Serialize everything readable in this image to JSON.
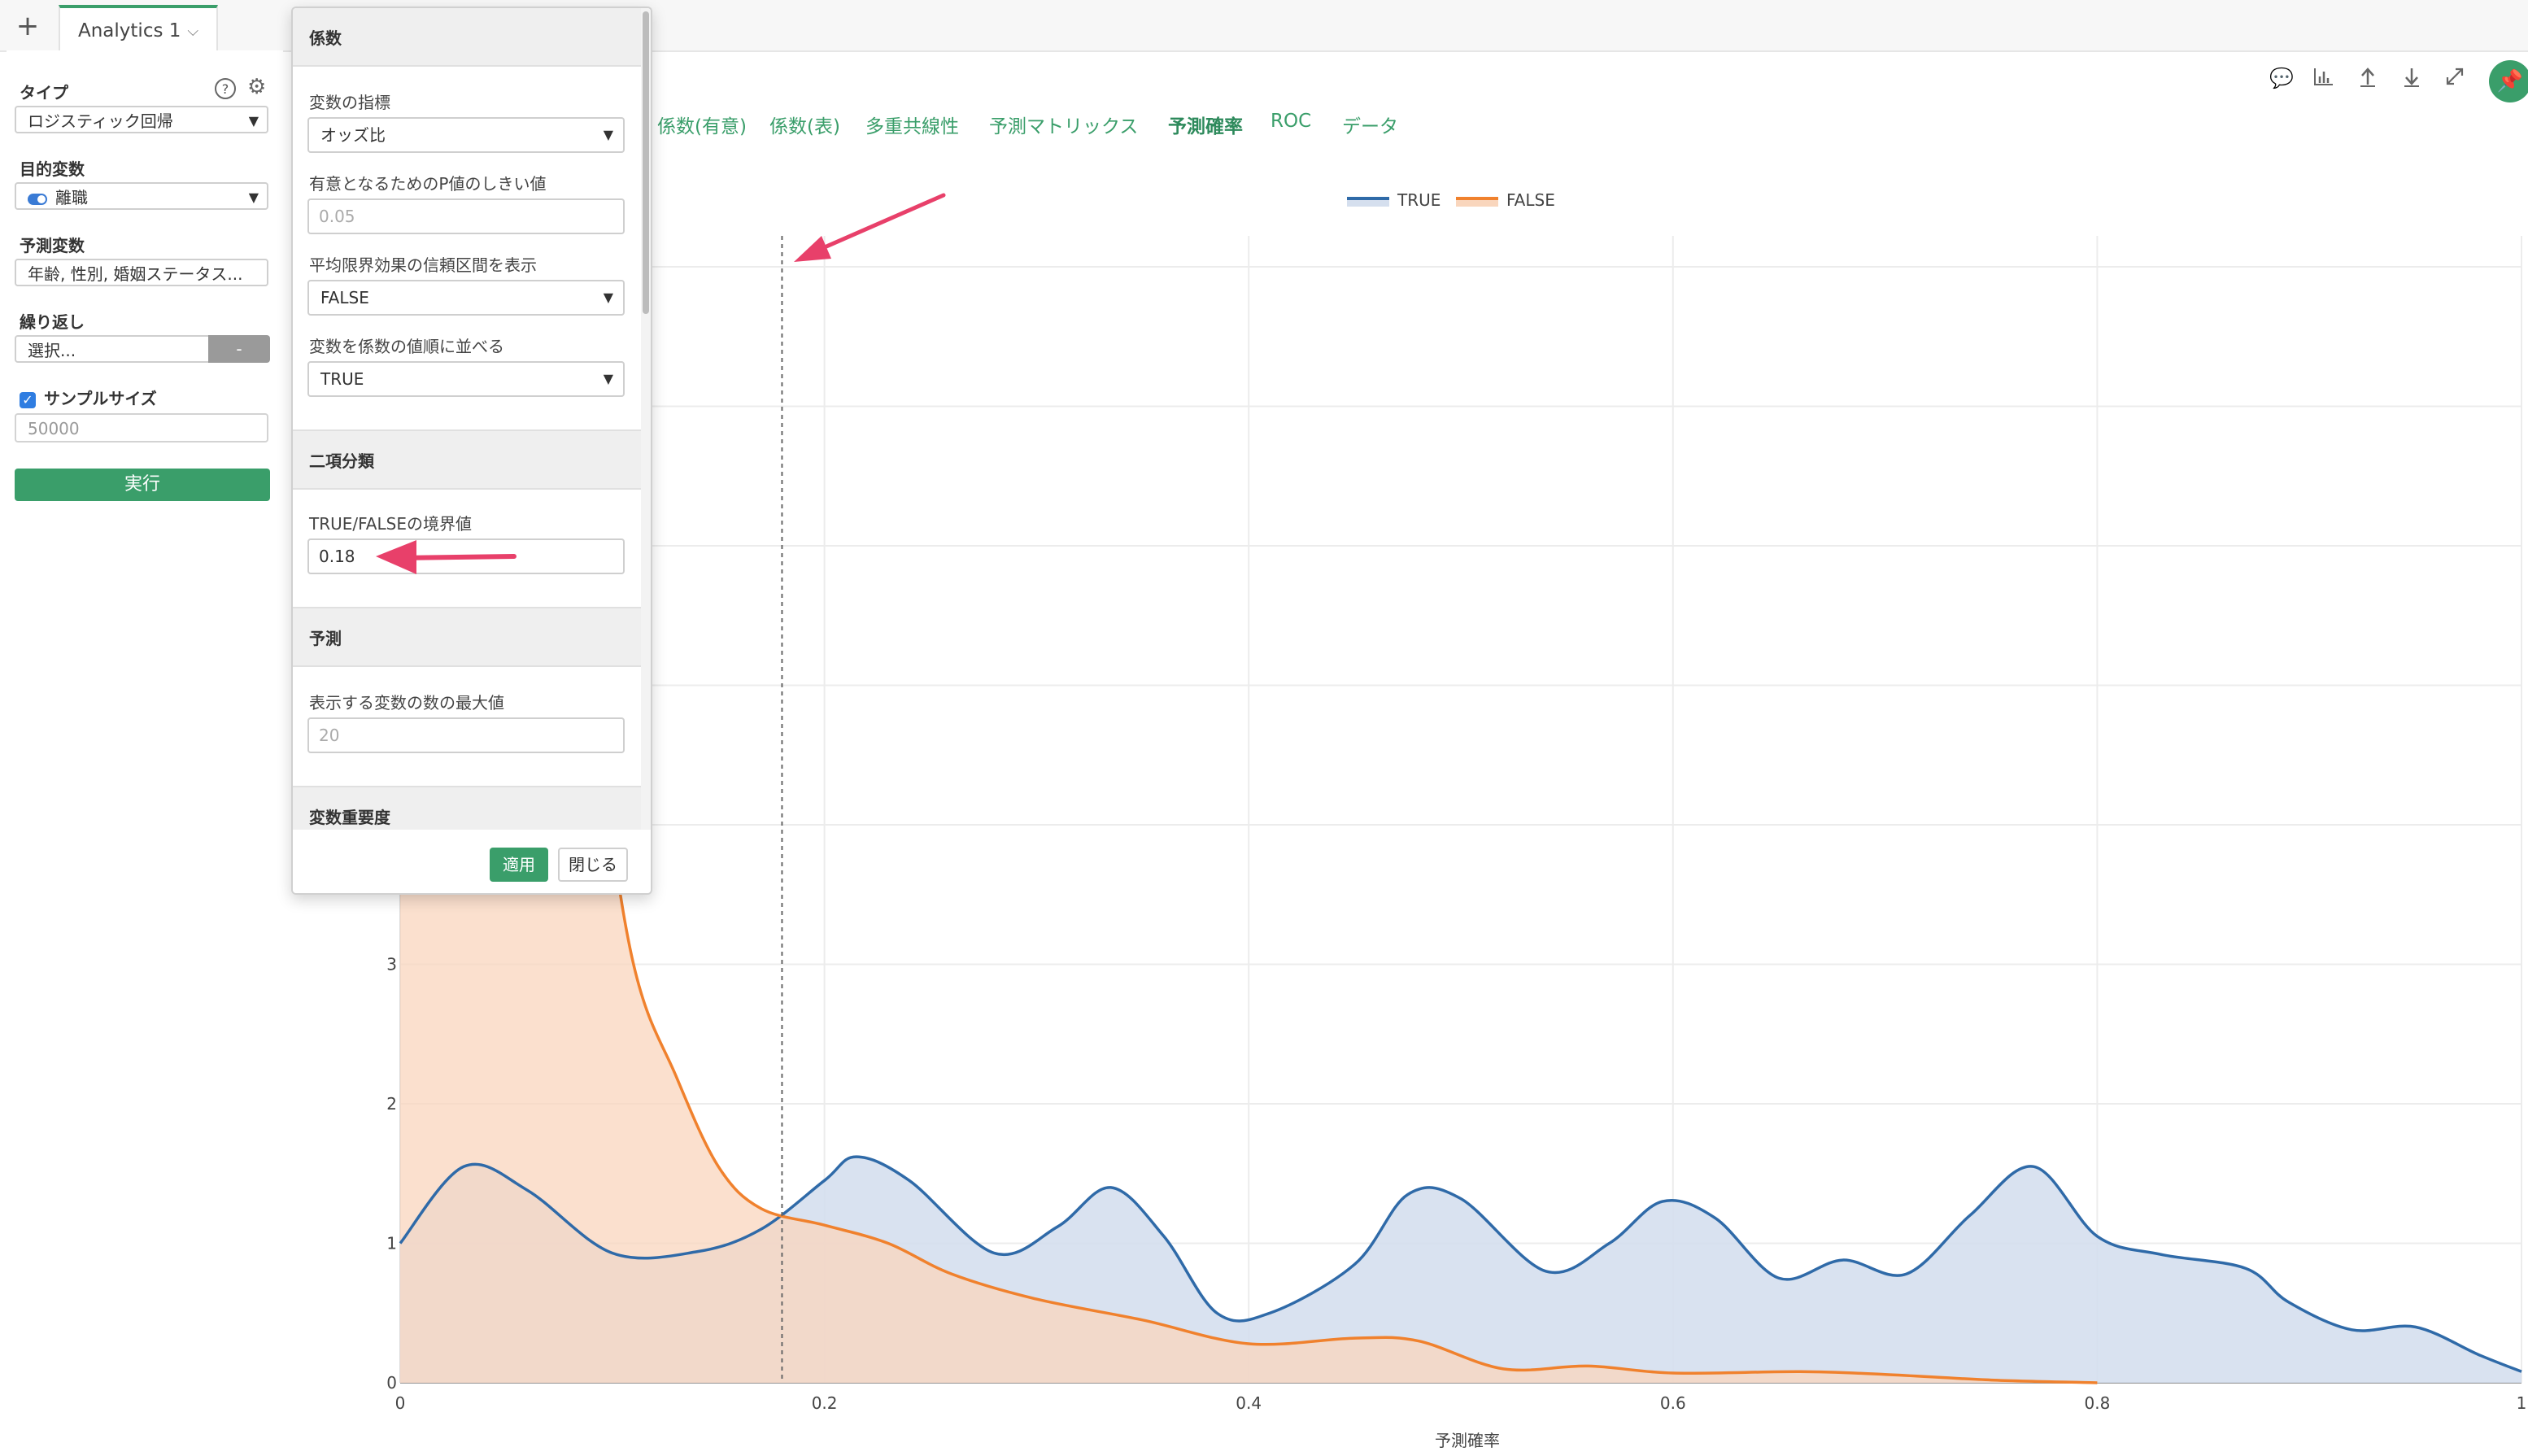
{
  "topbar": {
    "tab_label": "Analytics 1",
    "plus": "+",
    "tab_chevron": "⌵"
  },
  "left": {
    "type_label": "タイプ",
    "type_value": "ロジスティック回帰",
    "target_label": "目的変数",
    "target_value": "離職",
    "predictors_label": "予測変数",
    "predictors_value": "年齢, 性別, 婚姻ステータス...",
    "repeat_label": "繰り返し",
    "repeat_placeholder": "選択...",
    "repeat_button": "-",
    "sample_label": "サンプルサイズ",
    "sample_placeholder": "50000",
    "run_button": "実行"
  },
  "popup": {
    "coef_section": "係数",
    "var_metric_label": "変数の指標",
    "var_metric_value": "オッズ比",
    "pvalue_label": "有意となるためのP値のしきい値",
    "pvalue_placeholder": "0.05",
    "mfx_ci_label": "平均限界効果の信頼区間を表示",
    "mfx_ci_value": "FALSE",
    "sort_label": "変数を係数の値順に並べる",
    "sort_value": "TRUE",
    "binary_section": "二項分類",
    "threshold_label": "TRUE/FALSEの境界値",
    "threshold_value": "0.18",
    "predict_section": "予測",
    "maxvars_label": "表示する変数の数の最大値",
    "maxvars_placeholder": "20",
    "importance_section": "変数重要度",
    "apply_button": "適用",
    "close_button": "閉じる"
  },
  "nav_tabs": [
    {
      "label": "係数(有意)",
      "active": false
    },
    {
      "label": "係数(表)",
      "active": false
    },
    {
      "label": "多重共線性",
      "active": false
    },
    {
      "label": "予測マトリックス",
      "active": false
    },
    {
      "label": "予測確率",
      "active": true
    },
    {
      "label": "ROC",
      "active": false
    },
    {
      "label": "データ",
      "active": false
    }
  ],
  "toolbar": {
    "comment_icon": "comment-icon",
    "chart_icon": "chart-icon",
    "upload_icon": "upload-icon",
    "download_icon": "download-icon",
    "expand_icon": "expand-icon",
    "pin_icon": "pin-icon"
  },
  "colors": {
    "accent": "#3a9e6a",
    "true_line": "#2f6aa8",
    "true_fill": "#d5dfee",
    "false_line": "#f0812d",
    "false_fill": "#f9d6bd",
    "arrow": "#e8406a"
  },
  "chart_data": {
    "type": "area",
    "xlabel": "予測確率",
    "ylabel": "",
    "xlim": [
      0,
      1
    ],
    "ylim": [
      0,
      8
    ],
    "x_ticks": [
      "0",
      "0.2",
      "0.4",
      "0.6",
      "0.8",
      "1"
    ],
    "y_ticks": [
      "0",
      "1",
      "2",
      "3"
    ],
    "threshold_line": 0.18,
    "legend_position": "top-center",
    "series": [
      {
        "name": "TRUE",
        "points": [
          [
            0,
            1.0
          ],
          [
            0.03,
            1.55
          ],
          [
            0.06,
            1.38
          ],
          [
            0.1,
            0.93
          ],
          [
            0.14,
            0.94
          ],
          [
            0.17,
            1.1
          ],
          [
            0.2,
            1.45
          ],
          [
            0.215,
            1.62
          ],
          [
            0.24,
            1.45
          ],
          [
            0.28,
            0.93
          ],
          [
            0.31,
            1.12
          ],
          [
            0.335,
            1.4
          ],
          [
            0.36,
            1.05
          ],
          [
            0.385,
            0.5
          ],
          [
            0.41,
            0.5
          ],
          [
            0.45,
            0.85
          ],
          [
            0.475,
            1.35
          ],
          [
            0.5,
            1.32
          ],
          [
            0.54,
            0.8
          ],
          [
            0.57,
            1.0
          ],
          [
            0.595,
            1.3
          ],
          [
            0.62,
            1.18
          ],
          [
            0.65,
            0.75
          ],
          [
            0.68,
            0.88
          ],
          [
            0.71,
            0.78
          ],
          [
            0.74,
            1.2
          ],
          [
            0.77,
            1.55
          ],
          [
            0.8,
            1.05
          ],
          [
            0.83,
            0.92
          ],
          [
            0.87,
            0.82
          ],
          [
            0.89,
            0.58
          ],
          [
            0.92,
            0.38
          ],
          [
            0.95,
            0.4
          ],
          [
            0.98,
            0.2
          ],
          [
            1.0,
            0.08
          ]
        ]
      },
      {
        "name": "FALSE",
        "points": [
          [
            0,
            8.0
          ],
          [
            0.05,
            8.0
          ],
          [
            0.09,
            4.8
          ],
          [
            0.11,
            3.0
          ],
          [
            0.13,
            2.2
          ],
          [
            0.15,
            1.55
          ],
          [
            0.17,
            1.25
          ],
          [
            0.2,
            1.13
          ],
          [
            0.23,
            1.0
          ],
          [
            0.26,
            0.78
          ],
          [
            0.3,
            0.6
          ],
          [
            0.35,
            0.45
          ],
          [
            0.4,
            0.28
          ],
          [
            0.45,
            0.32
          ],
          [
            0.48,
            0.3
          ],
          [
            0.52,
            0.1
          ],
          [
            0.56,
            0.12
          ],
          [
            0.6,
            0.07
          ],
          [
            0.66,
            0.08
          ],
          [
            0.7,
            0.06
          ],
          [
            0.75,
            0.02
          ],
          [
            0.8,
            0.0
          ]
        ]
      }
    ]
  }
}
